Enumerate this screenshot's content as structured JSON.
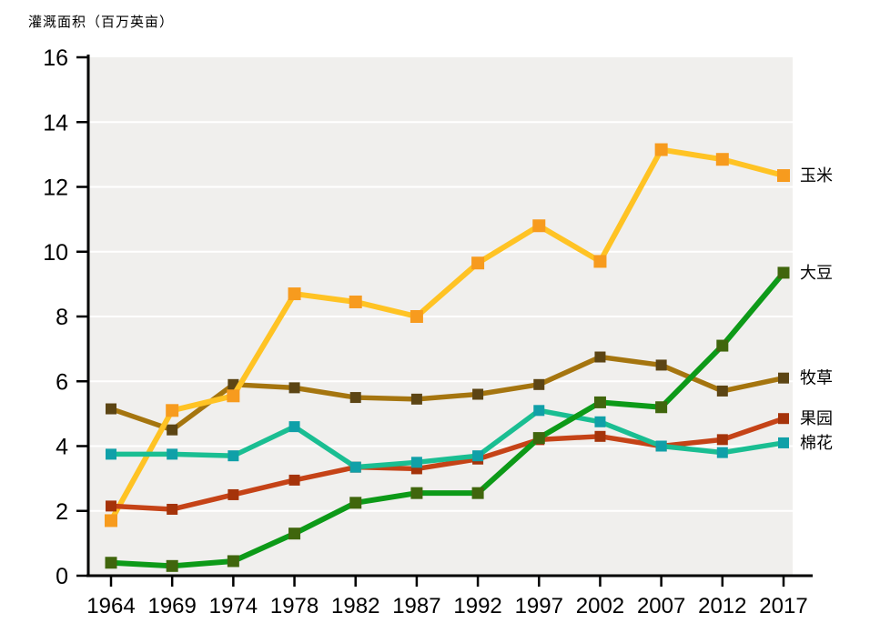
{
  "header": {
    "title": "灌溉面积（百万英亩）"
  },
  "chart_data": {
    "type": "line",
    "title": "灌溉面积（百万英亩）",
    "ylabel": "灌溉面积（百万英亩）",
    "xlabel": "",
    "x": [
      1964,
      1969,
      1974,
      1978,
      1982,
      1987,
      1992,
      1997,
      2002,
      2007,
      2012,
      2017
    ],
    "ylim": [
      0,
      16
    ],
    "yticks": [
      0,
      2,
      4,
      6,
      8,
      10,
      12,
      14,
      16
    ],
    "grid": "horizontal-white-lines-on-gray-panel",
    "legend_position": "labels-right-of-last-point",
    "panel_color": "#f0efed",
    "gridline_color": "#ffffff",
    "axis_color": "#000000",
    "series": [
      {
        "name": "牧草",
        "values": [
          5.15,
          4.5,
          5.9,
          5.8,
          5.5,
          5.45,
          5.6,
          5.9,
          6.75,
          6.5,
          5.7,
          6.1
        ],
        "line_color": "#a5750f",
        "marker_color": "#5c4514",
        "line_width": 5.5,
        "marker_size": 12
      },
      {
        "name": "玉米",
        "values": [
          1.7,
          5.1,
          5.55,
          8.7,
          8.45,
          8.0,
          9.65,
          10.8,
          9.7,
          13.15,
          12.85,
          12.35
        ],
        "line_color": "#ffc324",
        "marker_color": "#f79b1e",
        "line_width": 6,
        "marker_size": 14
      },
      {
        "name": "果园",
        "values": [
          2.15,
          2.05,
          2.5,
          2.95,
          3.35,
          3.3,
          3.6,
          4.2,
          4.3,
          4.0,
          4.2,
          4.85
        ],
        "line_color": "#c54317",
        "marker_color": "#a5330a",
        "line_width": 5.5,
        "marker_size": 12
      },
      {
        "name": "棉花",
        "values": [
          3.75,
          3.75,
          3.7,
          4.6,
          3.35,
          3.5,
          3.7,
          5.1,
          4.75,
          4.0,
          3.8,
          4.1
        ],
        "line_color": "#1abe92",
        "marker_color": "#10a0a8",
        "line_width": 5.5,
        "marker_size": 12
      },
      {
        "name": "大豆",
        "values": [
          0.4,
          0.3,
          0.45,
          1.3,
          2.25,
          2.55,
          2.55,
          4.25,
          5.35,
          5.2,
          7.1,
          9.35
        ],
        "line_color": "#0d9a18",
        "marker_color": "#40660d",
        "line_width": 6,
        "marker_size": 13
      }
    ]
  }
}
